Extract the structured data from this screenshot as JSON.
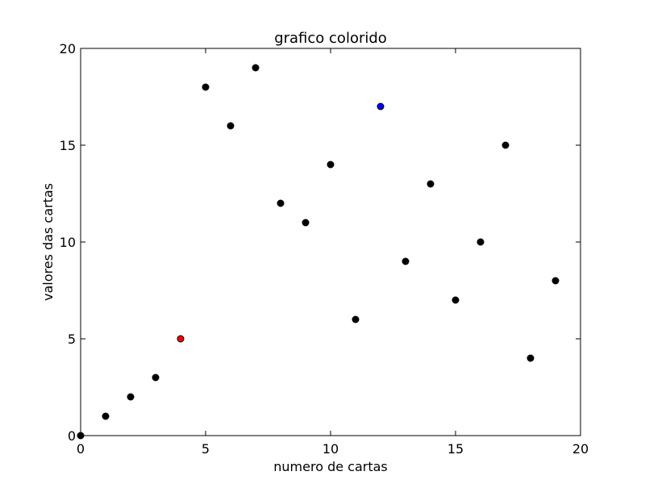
{
  "chart_data": {
    "type": "scatter",
    "title": "grafico colorido",
    "xlabel": "numero de cartas",
    "ylabel": "valores das cartas",
    "xlim": [
      0,
      20
    ],
    "ylim": [
      0,
      20
    ],
    "xticks": [
      "0",
      "5",
      "10",
      "15",
      "20"
    ],
    "yticks": [
      "0",
      "5",
      "10",
      "15",
      "20"
    ],
    "grid": false,
    "legend": "none",
    "default_color": "#000000",
    "points": [
      {
        "x": 0,
        "y": 0,
        "color": "#000000"
      },
      {
        "x": 1,
        "y": 1,
        "color": "#000000"
      },
      {
        "x": 2,
        "y": 2,
        "color": "#000000"
      },
      {
        "x": 3,
        "y": 3,
        "color": "#000000"
      },
      {
        "x": 4,
        "y": 5,
        "color": "#ff0000"
      },
      {
        "x": 5,
        "y": 18,
        "color": "#000000"
      },
      {
        "x": 6,
        "y": 16,
        "color": "#000000"
      },
      {
        "x": 7,
        "y": 19,
        "color": "#000000"
      },
      {
        "x": 8,
        "y": 12,
        "color": "#000000"
      },
      {
        "x": 9,
        "y": 11,
        "color": "#000000"
      },
      {
        "x": 10,
        "y": 14,
        "color": "#000000"
      },
      {
        "x": 11,
        "y": 6,
        "color": "#000000"
      },
      {
        "x": 12,
        "y": 17,
        "color": "#0000ff"
      },
      {
        "x": 13,
        "y": 9,
        "color": "#000000"
      },
      {
        "x": 14,
        "y": 13,
        "color": "#000000"
      },
      {
        "x": 15,
        "y": 7,
        "color": "#000000"
      },
      {
        "x": 16,
        "y": 10,
        "color": "#000000"
      },
      {
        "x": 17,
        "y": 15,
        "color": "#000000"
      },
      {
        "x": 18,
        "y": 4,
        "color": "#000000"
      },
      {
        "x": 19,
        "y": 8,
        "color": "#000000"
      }
    ]
  }
}
